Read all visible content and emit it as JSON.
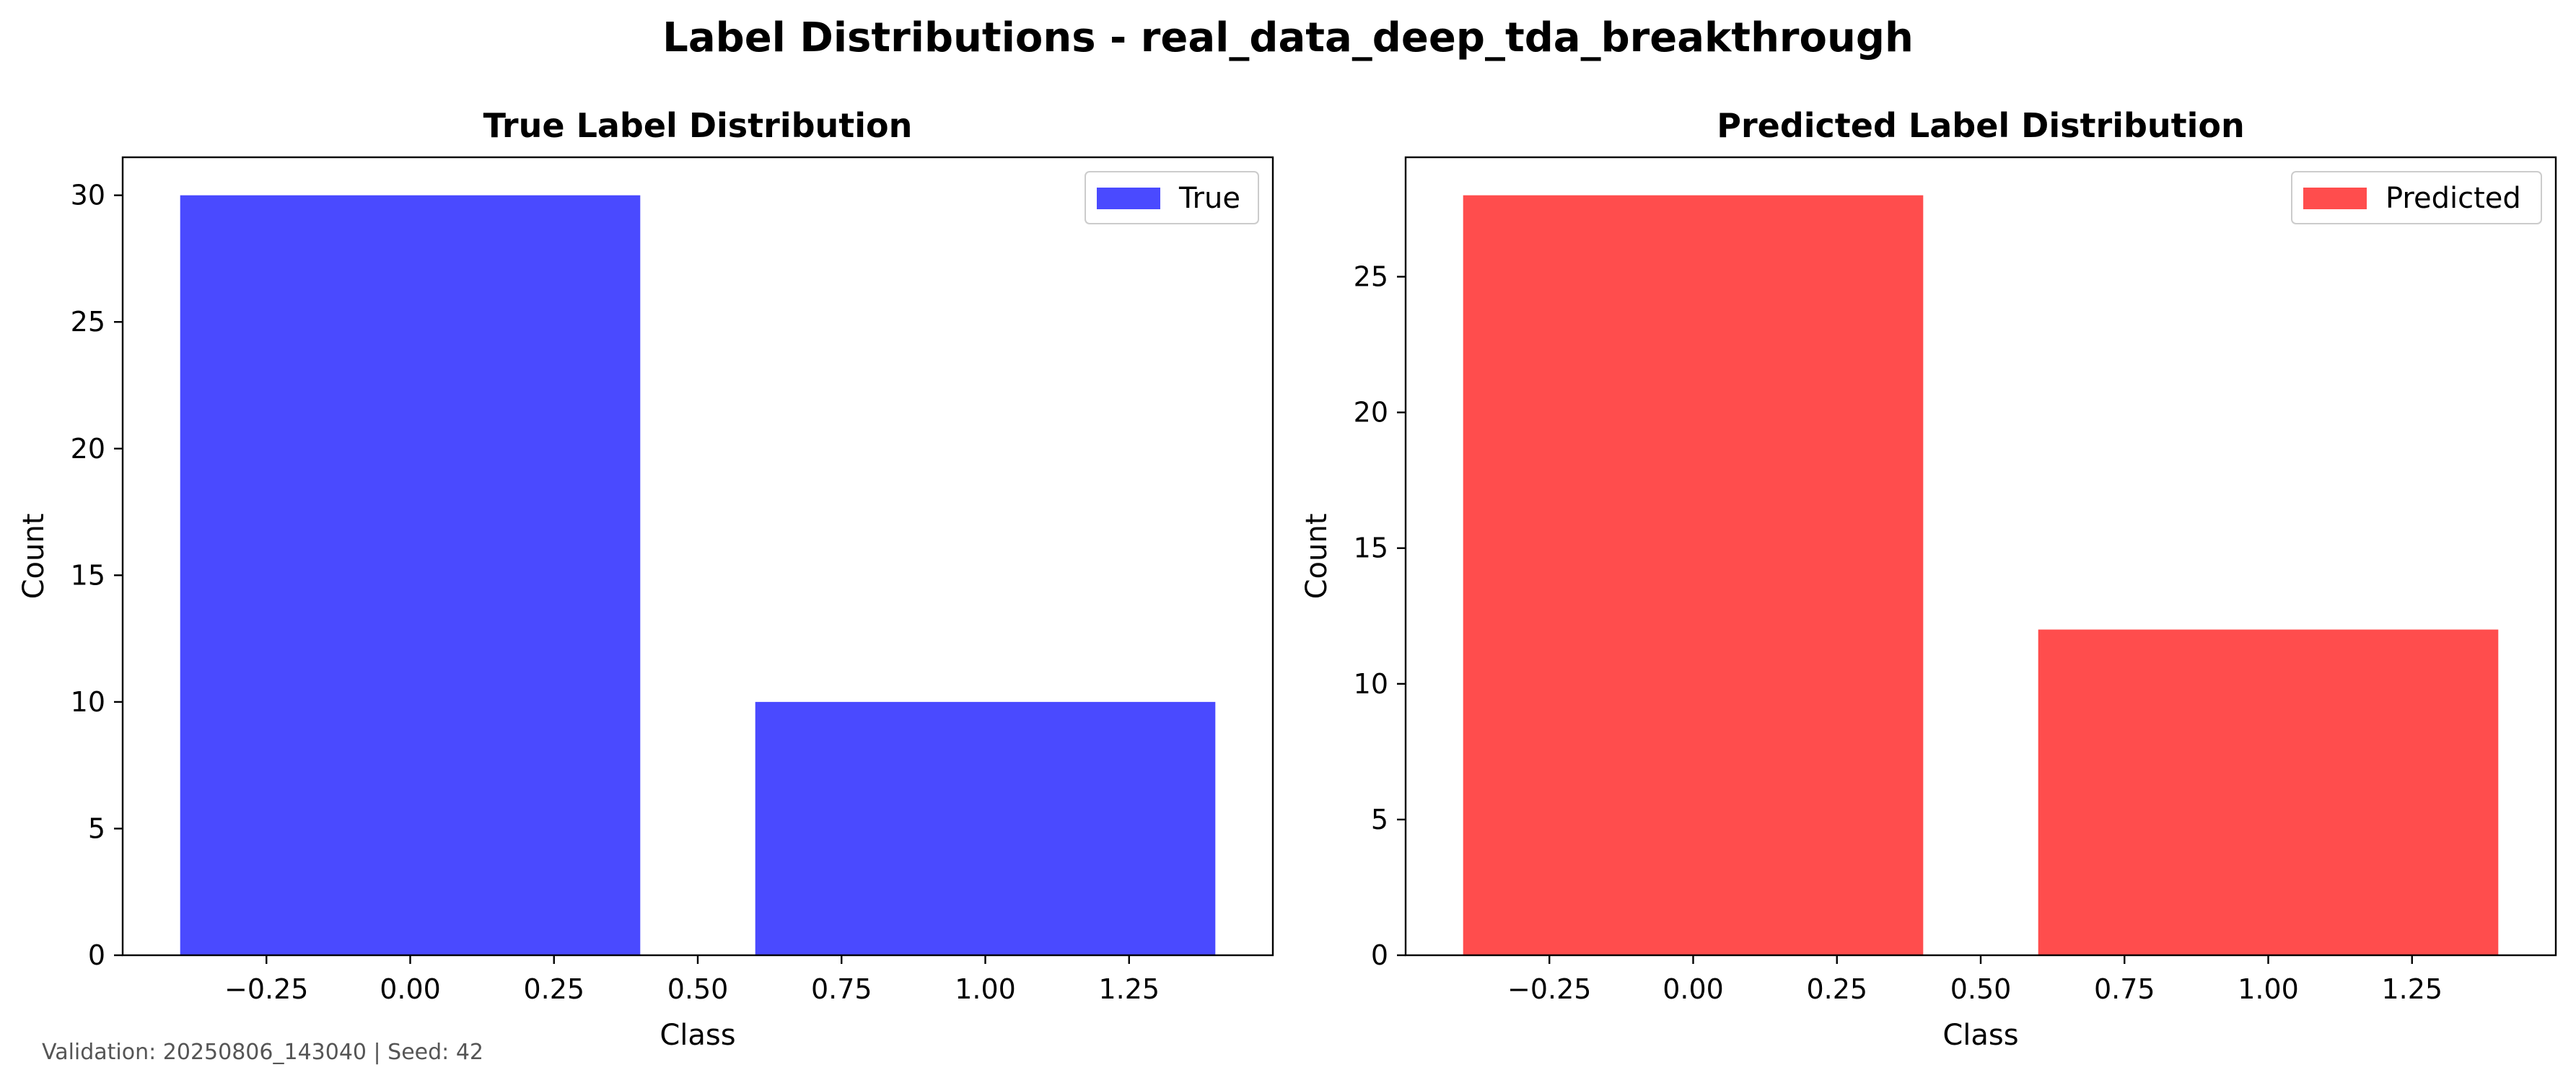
{
  "figure": {
    "suptitle": "Label Distributions - real_data_deep_tda_breakthrough",
    "footnote": "Validation: 20250806_143040 | Seed: 42"
  },
  "chart_data": [
    {
      "type": "bar",
      "title": "True Label Distribution",
      "xlabel": "Class",
      "ylabel": "Count",
      "x": [
        0,
        1
      ],
      "values": [
        30,
        10
      ],
      "bar_width": 0.8,
      "series_name": "True",
      "color": "#4a4aff",
      "xlim": [
        -0.5,
        1.5
      ],
      "ylim": [
        0,
        31.5
      ],
      "xticks": [
        -0.25,
        0.0,
        0.25,
        0.5,
        0.75,
        1.0,
        1.25
      ],
      "xtick_labels": [
        "−0.25",
        "0.00",
        "0.25",
        "0.50",
        "0.75",
        "1.00",
        "1.25"
      ],
      "yticks": [
        0,
        5,
        10,
        15,
        20,
        25,
        30
      ],
      "ytick_labels": [
        "0",
        "5",
        "10",
        "15",
        "20",
        "25",
        "30"
      ],
      "grid": false,
      "legend_position": "top-right"
    },
    {
      "type": "bar",
      "title": "Predicted Label Distribution",
      "xlabel": "Class",
      "ylabel": "Count",
      "x": [
        0,
        1
      ],
      "values": [
        28,
        12
      ],
      "bar_width": 0.8,
      "series_name": "Predicted",
      "color": "#ff4d4d",
      "xlim": [
        -0.5,
        1.5
      ],
      "ylim": [
        0,
        29.4
      ],
      "xticks": [
        -0.25,
        0.0,
        0.25,
        0.5,
        0.75,
        1.0,
        1.25
      ],
      "xtick_labels": [
        "−0.25",
        "0.00",
        "0.25",
        "0.50",
        "0.75",
        "1.00",
        "1.25"
      ],
      "yticks": [
        0,
        5,
        10,
        15,
        20,
        25
      ],
      "ytick_labels": [
        "0",
        "5",
        "10",
        "15",
        "20",
        "25"
      ],
      "grid": false,
      "legend_position": "top-right"
    }
  ]
}
